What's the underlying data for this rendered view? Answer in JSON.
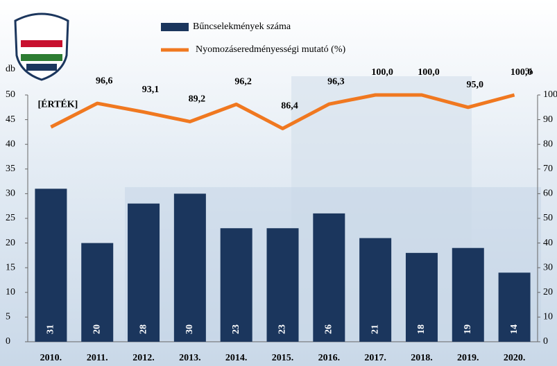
{
  "chart_data": {
    "type": "bar",
    "categories": [
      "2010.",
      "2011.",
      "2012.",
      "2013.",
      "2014.",
      "2015.",
      "2016.",
      "2017.",
      "2018.",
      "2019.",
      "2020."
    ],
    "series": [
      {
        "name": "Bűncselekmények száma",
        "color": "#1b365d",
        "type": "bar",
        "values": [
          31,
          20,
          28,
          30,
          23,
          23,
          26,
          21,
          18,
          19,
          14
        ]
      },
      {
        "name": "Nyomozáseredményességi mutató (%)",
        "color": "#f07820",
        "type": "line",
        "axis": "y2",
        "values": [
          87,
          96.6,
          93.1,
          89.2,
          96.2,
          86.4,
          96.3,
          100.0,
          100.0,
          95.0,
          100.0
        ],
        "value_labels": [
          "[ÉRTÉK]",
          "96,6",
          "93,1",
          "89,2",
          "96,2",
          "86,4",
          "96,3",
          "100,0",
          "100,0",
          "95,0",
          "100,0"
        ]
      }
    ],
    "y_label": "db",
    "y2_label": "%",
    "ylim": [
      0,
      50
    ],
    "yticks": [
      0,
      5,
      10,
      15,
      20,
      25,
      30,
      35,
      40,
      45,
      50
    ],
    "y2lim": [
      0,
      100
    ],
    "y2ticks": [
      0,
      10,
      20,
      30,
      40,
      50,
      60,
      70,
      80,
      90,
      100
    ]
  }
}
